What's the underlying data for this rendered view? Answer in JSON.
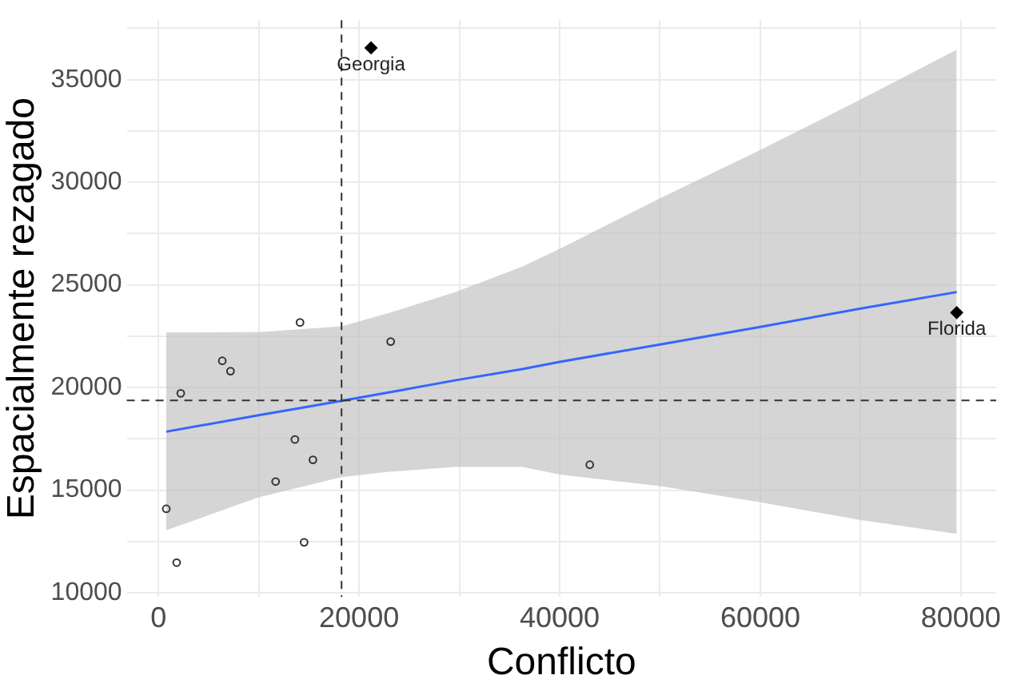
{
  "chart_data": {
    "type": "scatter",
    "xlabel": "Conflicto",
    "ylabel": "Espacialmente rezagado",
    "xlim": [
      -3160,
      83520
    ],
    "ylim": [
      9800,
      37900
    ],
    "xticks": [
      0,
      {
        "value": 10000,
        "label": null
      },
      20000,
      {
        "value": 30000,
        "label": null
      },
      40000,
      {
        "value": 50000,
        "label": null
      },
      60000,
      {
        "value": 70000,
        "label": null
      },
      80000
    ],
    "yticks": [
      10000,
      {
        "value": 12500,
        "label": null
      },
      15000,
      {
        "value": 17500,
        "label": null
      },
      20000,
      {
        "value": 22500,
        "label": null
      },
      25000,
      {
        "value": 27500,
        "label": null
      },
      30000,
      {
        "value": 32500,
        "label": null
      },
      35000,
      {
        "value": 37500,
        "label": null
      }
    ],
    "grid": true,
    "legend": false,
    "series": [
      {
        "type": "line",
        "color": "#3366ff",
        "marker": "none",
        "line_style": "solid",
        "x": [
          780,
          10000,
          18250,
          22840,
          29570,
          36280,
          40000,
          50000,
          60000,
          70000,
          79580
        ],
        "values": [
          17850,
          18650,
          19350,
          19750,
          20350,
          20900,
          21250,
          22100,
          22950,
          23850,
          24650
        ],
        "lower": [
          13050,
          14650,
          15640,
          15890,
          16130,
          16130,
          15760,
          15200,
          14410,
          13540,
          12870
        ],
        "upper": [
          22680,
          22700,
          22980,
          23610,
          24650,
          25890,
          26760,
          29220,
          31570,
          34040,
          36460
        ]
      },
      {
        "color": "#333333",
        "marker": "circle",
        "x": [
          14110,
          23150,
          6360,
          7180,
          2220,
          13600,
          15400,
          11680,
          780,
          14520,
          1810,
          43000
        ],
        "values": [
          23170,
          22240,
          21300,
          20800,
          19720,
          17470,
          16480,
          15420,
          14090,
          12460,
          11470,
          16240
        ]
      },
      {
        "color": "#000000",
        "marker": "diamond",
        "x": [
          21190,
          79580
        ],
        "values": [
          36550,
          23650
        ]
      }
    ],
    "ref_lines": [
      {
        "axis": "x",
        "value": 18250,
        "line_style": "dashed",
        "color": "#333333"
      },
      {
        "axis": "y",
        "value": 19370,
        "line_style": "dashed",
        "color": "#333333"
      }
    ],
    "annotations": [
      {
        "text": "Georgia",
        "x": 21190,
        "y": 36556
      },
      {
        "text": "Florida",
        "x": 79580,
        "y": 23670
      }
    ]
  }
}
